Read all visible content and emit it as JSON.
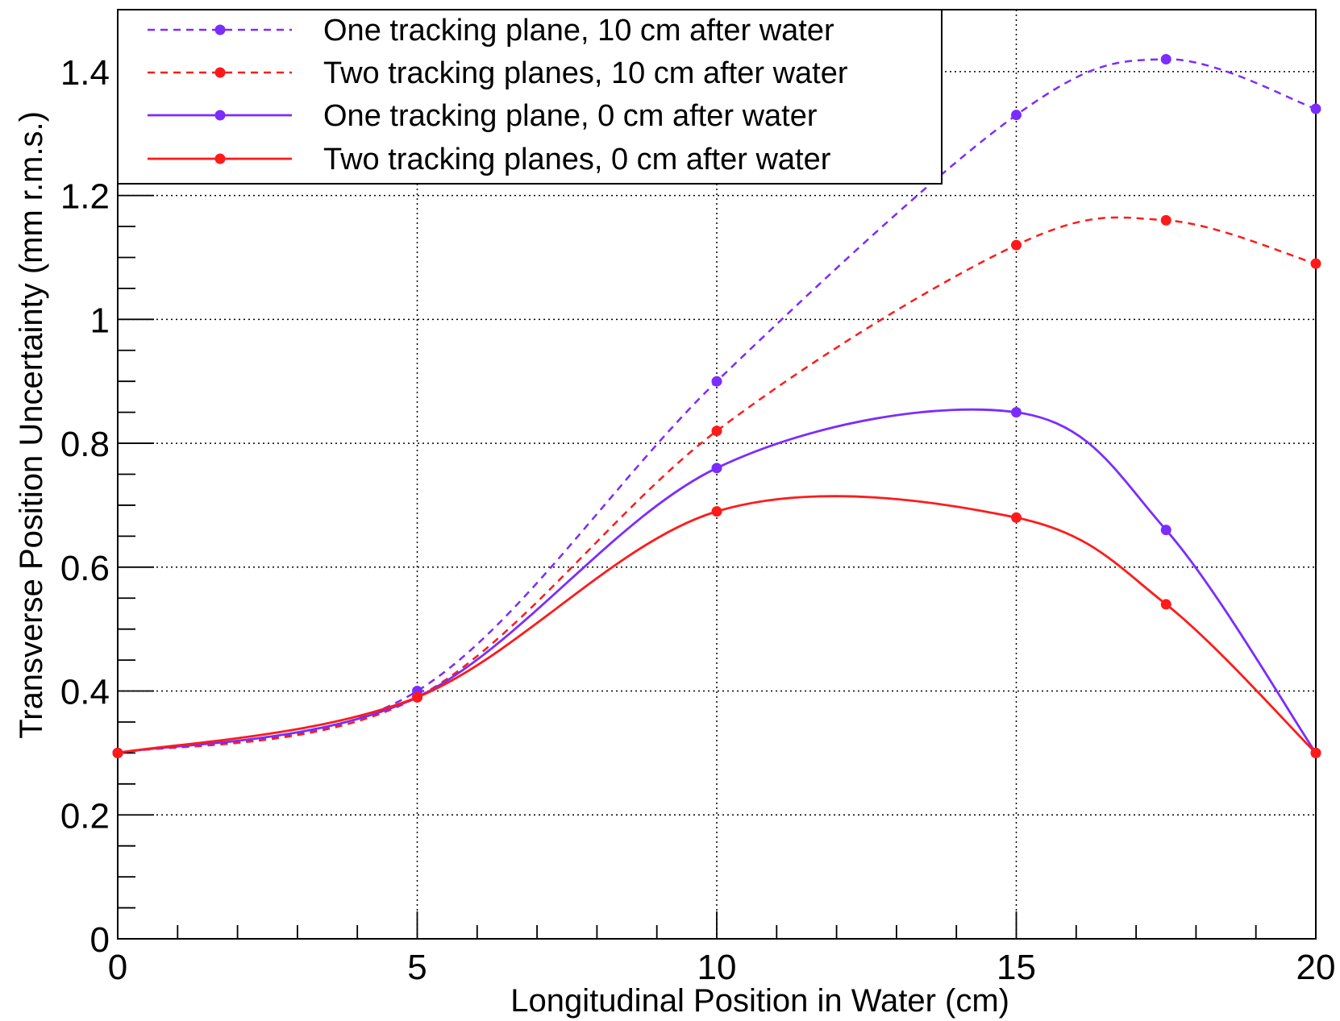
{
  "chart_data": {
    "type": "line",
    "title": "",
    "xlabel": "Longitudinal Position in Water (cm)",
    "ylabel": "Transverse Position Uncertainty (mm r.m.s.)",
    "xlim": [
      0,
      20
    ],
    "ylim": [
      0,
      1.5
    ],
    "grid": true,
    "legend_position": "top-left",
    "x_ticks": [
      0,
      5,
      10,
      15,
      20
    ],
    "x_tick_labels": [
      "0",
      "5",
      "10",
      "15",
      "20"
    ],
    "y_ticks": [
      0,
      0.2,
      0.4,
      0.6,
      0.8,
      1.0,
      1.2,
      1.4
    ],
    "y_tick_labels": [
      "0",
      "0.2",
      "0.4",
      "0.6",
      "0.8",
      "1",
      "1.2",
      "1.4"
    ],
    "series": [
      {
        "name": "One tracking plane, 10 cm after water",
        "color": "#7b2cff",
        "line_style": "dashed",
        "x": [
          0,
          5,
          10,
          15,
          17.5,
          20
        ],
        "y": [
          0.3,
          0.4,
          0.9,
          1.33,
          1.42,
          1.34
        ]
      },
      {
        "name": "Two tracking planes, 10 cm after water",
        "color": "#ff1a1a",
        "line_style": "dashed",
        "x": [
          0,
          5,
          10,
          15,
          17.5,
          20
        ],
        "y": [
          0.3,
          0.39,
          0.82,
          1.12,
          1.16,
          1.09
        ]
      },
      {
        "name": "One tracking plane, 0 cm after water",
        "color": "#7b2cff",
        "line_style": "solid",
        "x": [
          0,
          5,
          10,
          15,
          17.5,
          20
        ],
        "y": [
          0.3,
          0.39,
          0.76,
          0.85,
          0.66,
          0.3
        ]
      },
      {
        "name": "Two tracking planes, 0 cm after water",
        "color": "#ff1a1a",
        "line_style": "solid",
        "x": [
          0,
          5,
          10,
          15,
          17.5,
          20
        ],
        "y": [
          0.3,
          0.39,
          0.69,
          0.68,
          0.54,
          0.3
        ]
      }
    ]
  }
}
